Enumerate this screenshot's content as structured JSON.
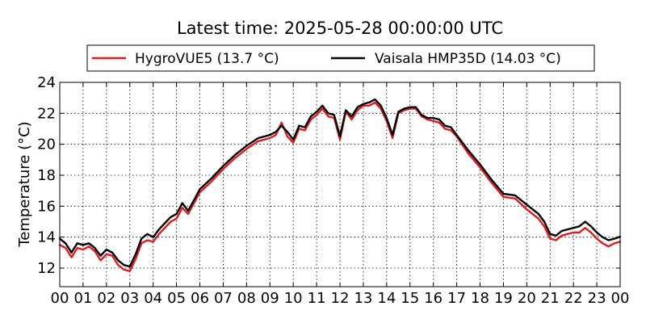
{
  "chart_data": {
    "type": "line",
    "title": "Latest time: 2025-05-28 00:00:00 UTC",
    "xlabel": "",
    "ylabel": "Temperature (°C)",
    "xlim": [
      0,
      24
    ],
    "ylim": [
      10.8,
      24
    ],
    "x_ticks": [
      "00",
      "01",
      "02",
      "03",
      "04",
      "05",
      "06",
      "07",
      "08",
      "09",
      "10",
      "11",
      "12",
      "13",
      "14",
      "15",
      "16",
      "17",
      "18",
      "19",
      "20",
      "21",
      "22",
      "23",
      "00"
    ],
    "y_ticks": [
      12,
      14,
      16,
      18,
      20,
      22,
      24
    ],
    "grid": true,
    "legend_position": "top",
    "series": [
      {
        "name": "HygroVUE5 (13.7 °C)",
        "color": "#e31a1c",
        "x": [
          0,
          0.25,
          0.5,
          0.75,
          1,
          1.25,
          1.5,
          1.75,
          2,
          2.25,
          2.5,
          2.75,
          3,
          3.25,
          3.5,
          3.75,
          4,
          4.25,
          4.5,
          4.75,
          5,
          5.25,
          5.5,
          5.75,
          6,
          6.5,
          7,
          7.5,
          8,
          8.5,
          9,
          9.25,
          9.5,
          9.75,
          10,
          10.25,
          10.5,
          10.75,
          11,
          11.25,
          11.5,
          11.75,
          12,
          12.25,
          12.5,
          12.75,
          13,
          13.25,
          13.5,
          13.75,
          14,
          14.25,
          14.5,
          14.75,
          15,
          15.25,
          15.5,
          15.75,
          16,
          16.25,
          16.5,
          16.75,
          17,
          17.5,
          18,
          18.5,
          19,
          19.5,
          20,
          20.5,
          20.75,
          21,
          21.25,
          21.5,
          21.75,
          22,
          22.25,
          22.5,
          22.75,
          23,
          23.25,
          23.5,
          23.75,
          24
        ],
        "values": [
          13.5,
          13.3,
          12.7,
          13.3,
          13.2,
          13.4,
          13.1,
          12.5,
          12.9,
          12.8,
          12.2,
          11.9,
          11.8,
          12.6,
          13.6,
          13.8,
          13.7,
          14.2,
          14.6,
          15.0,
          15.2,
          15.9,
          15.5,
          16.2,
          16.9,
          17.6,
          18.4,
          19.1,
          19.7,
          20.2,
          20.4,
          20.6,
          21.4,
          20.5,
          20.1,
          21.0,
          20.9,
          21.6,
          21.9,
          22.3,
          21.8,
          21.7,
          20.3,
          22.1,
          21.6,
          22.2,
          22.5,
          22.5,
          22.7,
          22.3,
          21.5,
          20.4,
          22.0,
          22.2,
          22.3,
          22.3,
          21.8,
          21.6,
          21.5,
          21.4,
          21.0,
          20.9,
          20.5,
          19.4,
          18.5,
          17.5,
          16.6,
          16.5,
          15.8,
          15.2,
          14.7,
          13.9,
          13.8,
          14.1,
          14.2,
          14.3,
          14.3,
          14.6,
          14.3,
          13.9,
          13.6,
          13.4,
          13.6,
          13.7
        ]
      },
      {
        "name": "Vaisala HMP35D (14.03 °C)",
        "color": "#000000",
        "x": [
          0,
          0.25,
          0.5,
          0.75,
          1,
          1.25,
          1.5,
          1.75,
          2,
          2.25,
          2.5,
          2.75,
          3,
          3.25,
          3.5,
          3.75,
          4,
          4.25,
          4.5,
          4.75,
          5,
          5.25,
          5.5,
          5.75,
          6,
          6.5,
          7,
          7.5,
          8,
          8.5,
          9,
          9.25,
          9.5,
          9.75,
          10,
          10.25,
          10.5,
          10.75,
          11,
          11.25,
          11.5,
          11.75,
          12,
          12.25,
          12.5,
          12.75,
          13,
          13.25,
          13.5,
          13.75,
          14,
          14.25,
          14.5,
          14.75,
          15,
          15.25,
          15.5,
          15.75,
          16,
          16.25,
          16.5,
          16.75,
          17,
          17.5,
          18,
          18.5,
          19,
          19.5,
          20,
          20.5,
          20.75,
          21,
          21.25,
          21.5,
          21.75,
          22,
          22.25,
          22.5,
          22.75,
          23,
          23.25,
          23.5,
          23.75,
          24
        ],
        "values": [
          13.9,
          13.6,
          13.0,
          13.6,
          13.5,
          13.6,
          13.3,
          12.8,
          13.2,
          13.0,
          12.5,
          12.2,
          12.1,
          12.9,
          13.9,
          14.2,
          14.0,
          14.5,
          14.9,
          15.3,
          15.5,
          16.2,
          15.7,
          16.4,
          17.1,
          17.8,
          18.6,
          19.3,
          19.9,
          20.4,
          20.6,
          20.8,
          21.2,
          20.8,
          20.3,
          21.2,
          21.1,
          21.8,
          22.1,
          22.5,
          22.0,
          21.9,
          20.5,
          22.2,
          21.8,
          22.4,
          22.6,
          22.7,
          22.9,
          22.5,
          21.7,
          20.6,
          22.1,
          22.3,
          22.4,
          22.4,
          21.9,
          21.7,
          21.7,
          21.6,
          21.2,
          21.1,
          20.6,
          19.6,
          18.7,
          17.7,
          16.8,
          16.7,
          16.1,
          15.5,
          15.0,
          14.2,
          14.1,
          14.4,
          14.5,
          14.6,
          14.7,
          15.0,
          14.7,
          14.3,
          14.0,
          13.8,
          13.9,
          14.03
        ]
      }
    ]
  }
}
